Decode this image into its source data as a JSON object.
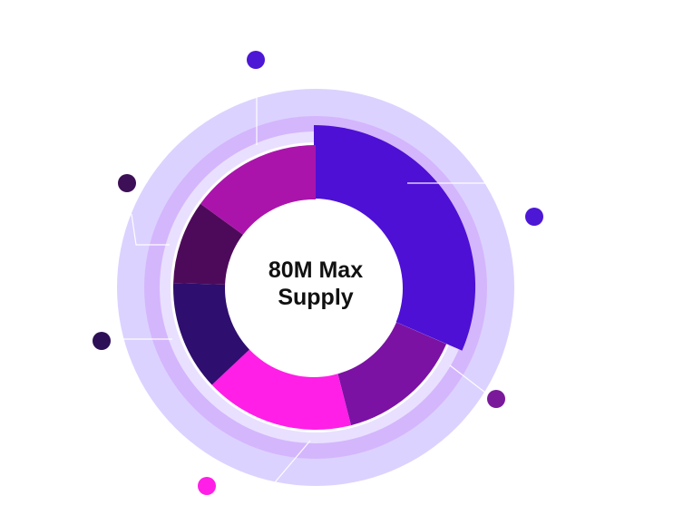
{
  "chart_data": {
    "type": "donut",
    "center_label": {
      "line1": "80M Max",
      "line2": "Supply"
    },
    "slices": [
      {
        "color": "#4d10d4",
        "value": 31.5,
        "exploded": true
      },
      {
        "color": "#7b12a3",
        "value": 14.5
      },
      {
        "color": "#ff1fe6",
        "value": 17
      },
      {
        "color": "#2e0e6e",
        "value": 12.5
      },
      {
        "color": "#4e0a5a",
        "value": 9.5
      },
      {
        "color": "#ab14ab",
        "value": 15
      }
    ],
    "ring_colors": {
      "outer": "#dcd2ff",
      "middle": "#d4b6fd",
      "inner": "#e9e0ff"
    },
    "marker_dot_colors": [
      "#4d17d6",
      "#3d0f56",
      "#2d0f57",
      "#ff1fe6",
      "#7a1a9b",
      "#4d17d6"
    ]
  }
}
